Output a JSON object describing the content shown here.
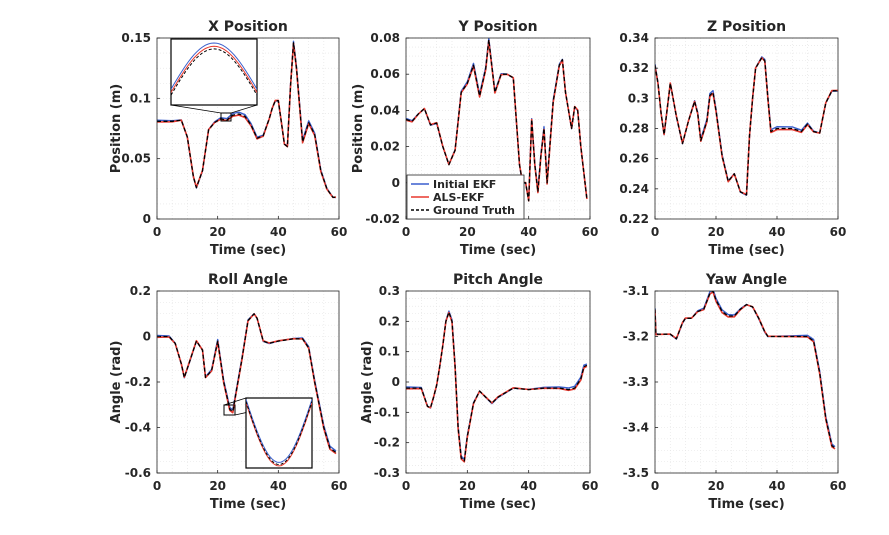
{
  "figure": {
    "width": 889,
    "height": 535
  },
  "legend": {
    "placement": "inside Y Position panel, lower-left",
    "entries": [
      {
        "name": "Initial EKF",
        "color": "#3a5fcd",
        "style": "solid"
      },
      {
        "name": "ALS-EKF",
        "color": "#e8392e",
        "style": "solid"
      },
      {
        "name": "Ground Truth",
        "color": "#000000",
        "style": "dashed"
      }
    ]
  },
  "chart_data": [
    {
      "type": "line",
      "title": "X Position",
      "xlabel": "Time (sec)",
      "ylabel": "Position (m)",
      "xlim": [
        0,
        60
      ],
      "ylim": [
        0,
        0.15
      ],
      "xticks": [
        "0",
        "20",
        "40",
        "60"
      ],
      "yticks": [
        "0",
        "0.05",
        "0.1",
        "0.15"
      ],
      "grid": true,
      "x": [
        0,
        5,
        8,
        10,
        12,
        13,
        15,
        17,
        19,
        21,
        23,
        25,
        27,
        29,
        31,
        33,
        35,
        37,
        38,
        39,
        40,
        41,
        42,
        43,
        44,
        45,
        46,
        48,
        50,
        52,
        54,
        56,
        58,
        59
      ],
      "series": [
        {
          "name": "Ground Truth",
          "values": [
            0.081,
            0.081,
            0.082,
            0.068,
            0.035,
            0.026,
            0.04,
            0.074,
            0.08,
            0.083,
            0.082,
            0.086,
            0.087,
            0.085,
            0.078,
            0.067,
            0.069,
            0.083,
            0.092,
            0.098,
            0.098,
            0.08,
            0.062,
            0.06,
            0.11,
            0.146,
            0.125,
            0.064,
            0.08,
            0.07,
            0.04,
            0.025,
            0.018,
            0.018
          ]
        }
      ],
      "inset": {
        "type": "zoom",
        "region_x": [
          21,
          25
        ],
        "region_y": [
          0.078,
          0.087
        ]
      }
    },
    {
      "type": "line",
      "title": "Y Position",
      "xlabel": "Time (sec)",
      "ylabel": "Position (m)",
      "xlim": [
        0,
        60
      ],
      "ylim": [
        -0.02,
        0.08
      ],
      "xticks": [
        "0",
        "20",
        "40",
        "60"
      ],
      "yticks": [
        "-0.02",
        "0",
        "0.02",
        "0.04",
        "0.06",
        "0.08"
      ],
      "grid": true,
      "x": [
        0,
        2,
        4,
        6,
        8,
        10,
        12,
        14,
        16,
        18,
        20,
        22,
        24,
        26,
        27,
        29,
        31,
        33,
        35,
        37,
        38,
        39,
        40,
        41,
        42,
        43,
        44,
        45,
        46,
        48,
        50,
        51,
        52,
        54,
        55,
        56,
        57,
        59
      ],
      "series": [
        {
          "name": "Ground Truth",
          "values": [
            0.035,
            0.034,
            0.038,
            0.041,
            0.032,
            0.033,
            0.02,
            0.01,
            0.018,
            0.05,
            0.055,
            0.065,
            0.048,
            0.063,
            0.079,
            0.05,
            0.06,
            0.06,
            0.058,
            0.01,
            0.0,
            0.0,
            -0.01,
            0.035,
            0.01,
            -0.005,
            0.015,
            0.03,
            0.0,
            0.045,
            0.065,
            0.068,
            0.05,
            0.03,
            0.042,
            0.04,
            0.02,
            -0.009
          ]
        }
      ]
    },
    {
      "type": "line",
      "title": "Z Position",
      "xlabel": "Time (sec)",
      "ylabel": "",
      "xlim": [
        0,
        60
      ],
      "ylim": [
        0.22,
        0.34
      ],
      "xticks": [
        "0",
        "20",
        "40",
        "60"
      ],
      "yticks": [
        "0.22",
        "0.24",
        "0.26",
        "0.28",
        "0.3",
        "0.32",
        "0.34"
      ],
      "grid": true,
      "x": [
        0,
        1,
        2,
        3,
        5,
        7,
        9,
        11,
        13,
        14,
        15,
        17,
        18,
        19,
        20,
        22,
        24,
        26,
        28,
        30,
        31,
        32,
        33,
        35,
        36,
        37,
        38,
        40,
        45,
        48,
        50,
        52,
        54,
        56,
        58,
        60
      ],
      "series": [
        {
          "name": "Ground Truth",
          "values": [
            0.322,
            0.31,
            0.29,
            0.276,
            0.31,
            0.288,
            0.27,
            0.285,
            0.298,
            0.29,
            0.272,
            0.285,
            0.302,
            0.304,
            0.292,
            0.262,
            0.245,
            0.25,
            0.238,
            0.236,
            0.275,
            0.3,
            0.32,
            0.327,
            0.325,
            0.3,
            0.278,
            0.28,
            0.28,
            0.278,
            0.283,
            0.278,
            0.277,
            0.297,
            0.305,
            0.305
          ]
        }
      ]
    },
    {
      "type": "line",
      "title": "Roll Angle",
      "xlabel": "Time (sec)",
      "ylabel": "Angle (rad)",
      "xlim": [
        0,
        60
      ],
      "ylim": [
        -0.6,
        0.2
      ],
      "xticks": [
        "0",
        "20",
        "40",
        "60"
      ],
      "yticks": [
        "-0.6",
        "-0.4",
        "-0.2",
        "0",
        "0.2"
      ],
      "grid": true,
      "x": [
        0,
        4,
        6,
        8,
        9,
        11,
        13,
        15,
        16,
        18,
        20,
        22,
        24,
        25,
        26,
        28,
        30,
        32,
        33,
        35,
        37,
        40,
        45,
        48,
        50,
        52,
        55,
        57,
        59
      ],
      "series": [
        {
          "name": "Ground Truth",
          "values": [
            0.0,
            0.0,
            -0.03,
            -0.12,
            -0.18,
            -0.1,
            -0.02,
            -0.06,
            -0.18,
            -0.15,
            -0.02,
            -0.2,
            -0.32,
            -0.33,
            -0.25,
            -0.1,
            0.07,
            0.1,
            0.08,
            -0.02,
            -0.03,
            -0.02,
            -0.01,
            -0.01,
            -0.05,
            -0.2,
            -0.4,
            -0.49,
            -0.51
          ]
        }
      ],
      "inset": {
        "type": "zoom",
        "region_x": [
          22,
          27
        ],
        "region_y": [
          -0.36,
          -0.3
        ]
      }
    },
    {
      "type": "line",
      "title": "Pitch Angle",
      "xlabel": "Time (sec)",
      "ylabel": "Angle (rad)",
      "xlim": [
        0,
        60
      ],
      "ylim": [
        -0.3,
        0.3
      ],
      "xticks": [
        "0",
        "20",
        "40",
        "60"
      ],
      "yticks": [
        "-0.3",
        "-0.2",
        "-0.1",
        "0",
        "0.1",
        "0.2",
        "0.3"
      ],
      "grid": true,
      "x": [
        0,
        5,
        7,
        8,
        9,
        10,
        11,
        12,
        13,
        14,
        15,
        16,
        17,
        18,
        19,
        20,
        22,
        24,
        26,
        28,
        30,
        35,
        40,
        45,
        50,
        53,
        55,
        57,
        58,
        59
      ],
      "series": [
        {
          "name": "Ground Truth",
          "values": [
            -0.02,
            -0.02,
            -0.08,
            -0.085,
            -0.05,
            -0.01,
            0.05,
            0.12,
            0.2,
            0.23,
            0.2,
            0.05,
            -0.15,
            -0.25,
            -0.26,
            -0.18,
            -0.07,
            -0.03,
            -0.05,
            -0.07,
            -0.05,
            -0.02,
            -0.025,
            -0.02,
            -0.02,
            -0.025,
            -0.02,
            0.01,
            0.05,
            0.055
          ]
        }
      ]
    },
    {
      "type": "line",
      "title": "Yaw Angle",
      "xlabel": "Time (sec)",
      "ylabel": "",
      "xlim": [
        0,
        60
      ],
      "ylim": [
        -3.5,
        -3.1
      ],
      "xticks": [
        "0",
        "20",
        "40",
        "60"
      ],
      "yticks": [
        "-3.5",
        "-3.4",
        "-3.3",
        "-3.2",
        "-3.1"
      ],
      "grid": true,
      "x": [
        0,
        0.3,
        1,
        5,
        7,
        9,
        10,
        12,
        14,
        16,
        18,
        19,
        20,
        22,
        24,
        26,
        28,
        30,
        32,
        34,
        36,
        37,
        40,
        45,
        50,
        52,
        54,
        56,
        58,
        59
      ],
      "series": [
        {
          "name": "Ground Truth",
          "values": [
            -3.14,
            -3.195,
            -3.195,
            -3.195,
            -3.205,
            -3.17,
            -3.16,
            -3.16,
            -3.145,
            -3.14,
            -3.105,
            -3.1,
            -3.12,
            -3.145,
            -3.155,
            -3.155,
            -3.14,
            -3.13,
            -3.135,
            -3.16,
            -3.19,
            -3.2,
            -3.2,
            -3.2,
            -3.2,
            -3.21,
            -3.28,
            -3.38,
            -3.44,
            -3.445
          ]
        }
      ]
    }
  ]
}
